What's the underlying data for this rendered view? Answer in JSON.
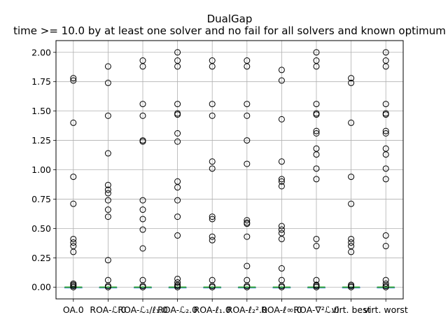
{
  "chart_data": {
    "type": "box",
    "title": "DualGap",
    "subtitle": "time >= 10.0 by at least one solver and no fail for all solvers and known optimum",
    "xlabel": "",
    "ylabel": "",
    "ylim": [
      -0.1,
      2.1
    ],
    "yticks": [
      0.0,
      0.25,
      0.5,
      0.75,
      1.0,
      1.25,
      1.5,
      1.75,
      2.0
    ],
    "ytick_labels": [
      "0.00",
      "0.25",
      "0.50",
      "0.75",
      "1.00",
      "1.25",
      "1.50",
      "1.75",
      "2.00"
    ],
    "grid": true,
    "median_color": "#2ca02c",
    "box_color": "#1f77b4",
    "categories": [
      "OA.0",
      "ROA-ℒ.0",
      "ROA-ℒ₁/ℓ₁.0",
      "ROA-ℒ₂.0",
      "ROA-ℓ₁.0",
      "ROA-ℓ₂².0",
      "ROA-ℓ∞.0",
      "ROA-∇²ℒ.0",
      "virt. best",
      "virt. worst"
    ],
    "category_labels": [
      "OA.0",
      "ROA-ℒ.0",
      "ROA-ℒ₁/ℓ₁.0",
      "ROA-ℒ₂.0",
      "ROA-ℓ₁.0",
      "ROA-ℓ₂².0",
      "ROA-ℓ∞.0",
      "ROA-∇²ℒ.0",
      "virt. best",
      "virt. worst"
    ],
    "series": [
      {
        "median": 0.0,
        "q1": 0.0,
        "q3": 0.0,
        "whisker_low": 0.0,
        "whisker_high": 0.0,
        "outliers": [
          1.78,
          1.76,
          1.4,
          0.94,
          0.71,
          0.41,
          0.38,
          0.35,
          0.3,
          0.03,
          0.02,
          0.01,
          0.0
        ]
      },
      {
        "median": 0.0,
        "q1": 0.0,
        "q3": 0.0,
        "whisker_low": 0.0,
        "whisker_high": 0.0,
        "outliers": [
          1.88,
          1.74,
          1.46,
          1.14,
          0.87,
          0.83,
          0.8,
          0.74,
          0.66,
          0.6,
          0.23,
          0.06,
          0.01,
          0.0
        ]
      },
      {
        "median": 0.0,
        "q1": 0.0,
        "q3": 0.0,
        "whisker_low": 0.0,
        "whisker_high": 0.0,
        "outliers": [
          1.93,
          1.88,
          1.56,
          1.46,
          1.25,
          1.24,
          0.74,
          0.66,
          0.58,
          0.49,
          0.33,
          0.06,
          0.01,
          0.0
        ]
      },
      {
        "median": 0.0,
        "q1": 0.0,
        "q3": 0.0,
        "whisker_low": 0.0,
        "whisker_high": 0.0,
        "outliers": [
          2.0,
          1.93,
          1.88,
          1.56,
          1.48,
          1.47,
          1.31,
          1.24,
          0.9,
          0.85,
          0.74,
          0.6,
          0.44,
          0.07,
          0.04,
          0.02,
          0.01,
          0.0
        ]
      },
      {
        "median": 0.0,
        "q1": 0.0,
        "q3": 0.0,
        "whisker_low": 0.0,
        "whisker_high": 0.0,
        "outliers": [
          1.93,
          1.88,
          1.56,
          1.46,
          1.07,
          1.01,
          0.6,
          0.58,
          0.43,
          0.4,
          0.06,
          0.01,
          0.0
        ]
      },
      {
        "median": 0.0,
        "q1": 0.0,
        "q3": 0.0,
        "whisker_low": 0.0,
        "whisker_high": 0.0,
        "outliers": [
          1.93,
          1.88,
          1.56,
          1.46,
          1.25,
          1.05,
          0.57,
          0.55,
          0.54,
          0.43,
          0.18,
          0.06,
          0.01,
          0.0
        ]
      },
      {
        "median": 0.0,
        "q1": 0.0,
        "q3": 0.0,
        "whisker_low": 0.0,
        "whisker_high": 0.0,
        "outliers": [
          1.85,
          1.76,
          1.43,
          1.07,
          0.92,
          0.9,
          0.86,
          0.52,
          0.49,
          0.46,
          0.41,
          0.16,
          0.06,
          0.01,
          0.0
        ]
      },
      {
        "median": 0.0,
        "q1": 0.0,
        "q3": 0.0,
        "whisker_low": 0.0,
        "whisker_high": 0.0,
        "outliers": [
          2.0,
          1.93,
          1.88,
          1.56,
          1.48,
          1.47,
          1.33,
          1.31,
          1.18,
          1.13,
          1.01,
          0.92,
          0.41,
          0.35,
          0.06,
          0.02,
          0.01,
          0.0
        ]
      },
      {
        "median": 0.0,
        "q1": 0.0,
        "q3": 0.0,
        "whisker_low": 0.0,
        "whisker_high": 0.0,
        "outliers": [
          1.78,
          1.74,
          1.4,
          0.94,
          0.71,
          0.41,
          0.38,
          0.35,
          0.3,
          0.02,
          0.01,
          0.0
        ]
      },
      {
        "median": 0.0,
        "q1": 0.0,
        "q3": 0.0,
        "whisker_low": 0.0,
        "whisker_high": 0.0,
        "outliers": [
          2.0,
          1.93,
          1.88,
          1.56,
          1.48,
          1.47,
          1.33,
          1.31,
          1.18,
          1.13,
          1.01,
          0.92,
          0.44,
          0.35,
          0.06,
          0.03,
          0.01,
          0.0
        ]
      }
    ]
  }
}
